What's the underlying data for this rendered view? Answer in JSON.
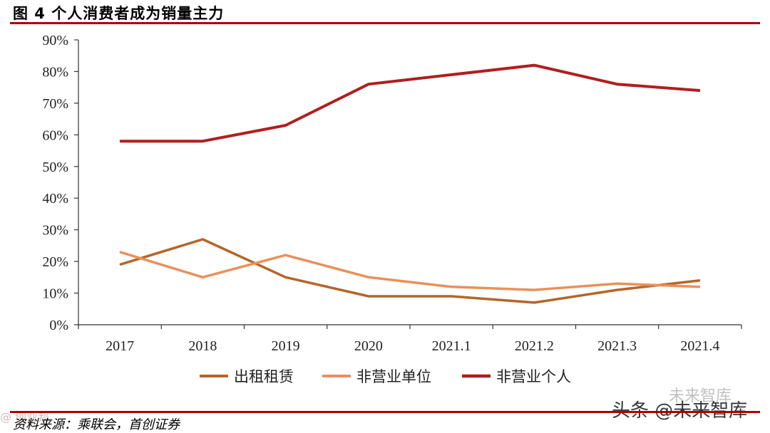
{
  "figure": {
    "title": "图 4 个人消费者成为销量主力",
    "source": "资料来源：乘联会，首创证券"
  },
  "watermarks": {
    "right_main": "头条 @未来智库",
    "right_sub": "未来智库",
    "left": "@ 创业邦"
  },
  "chart_data": {
    "type": "line",
    "title": "个人消费者成为销量主力",
    "categories": [
      "2017",
      "2018",
      "2019",
      "2020",
      "2021.1",
      "2021.2",
      "2021.3",
      "2021.4"
    ],
    "y_ticks": [
      "0%",
      "10%",
      "20%",
      "30%",
      "40%",
      "50%",
      "60%",
      "70%",
      "80%",
      "90%"
    ],
    "ylim": [
      0,
      90
    ],
    "xlabel": "",
    "ylabel": "",
    "legend_position": "bottom",
    "series": [
      {
        "name": "出租租赁",
        "color": "#b5652a",
        "values": [
          19,
          27,
          15,
          9,
          9,
          7,
          11,
          14
        ]
      },
      {
        "name": "非营业单位",
        "color": "#e8915a",
        "values": [
          23,
          15,
          22,
          15,
          12,
          11,
          13,
          12
        ]
      },
      {
        "name": "非营业个人",
        "color": "#b01e1e",
        "values": [
          58,
          58,
          63,
          76,
          79,
          82,
          76,
          74
        ]
      }
    ]
  }
}
